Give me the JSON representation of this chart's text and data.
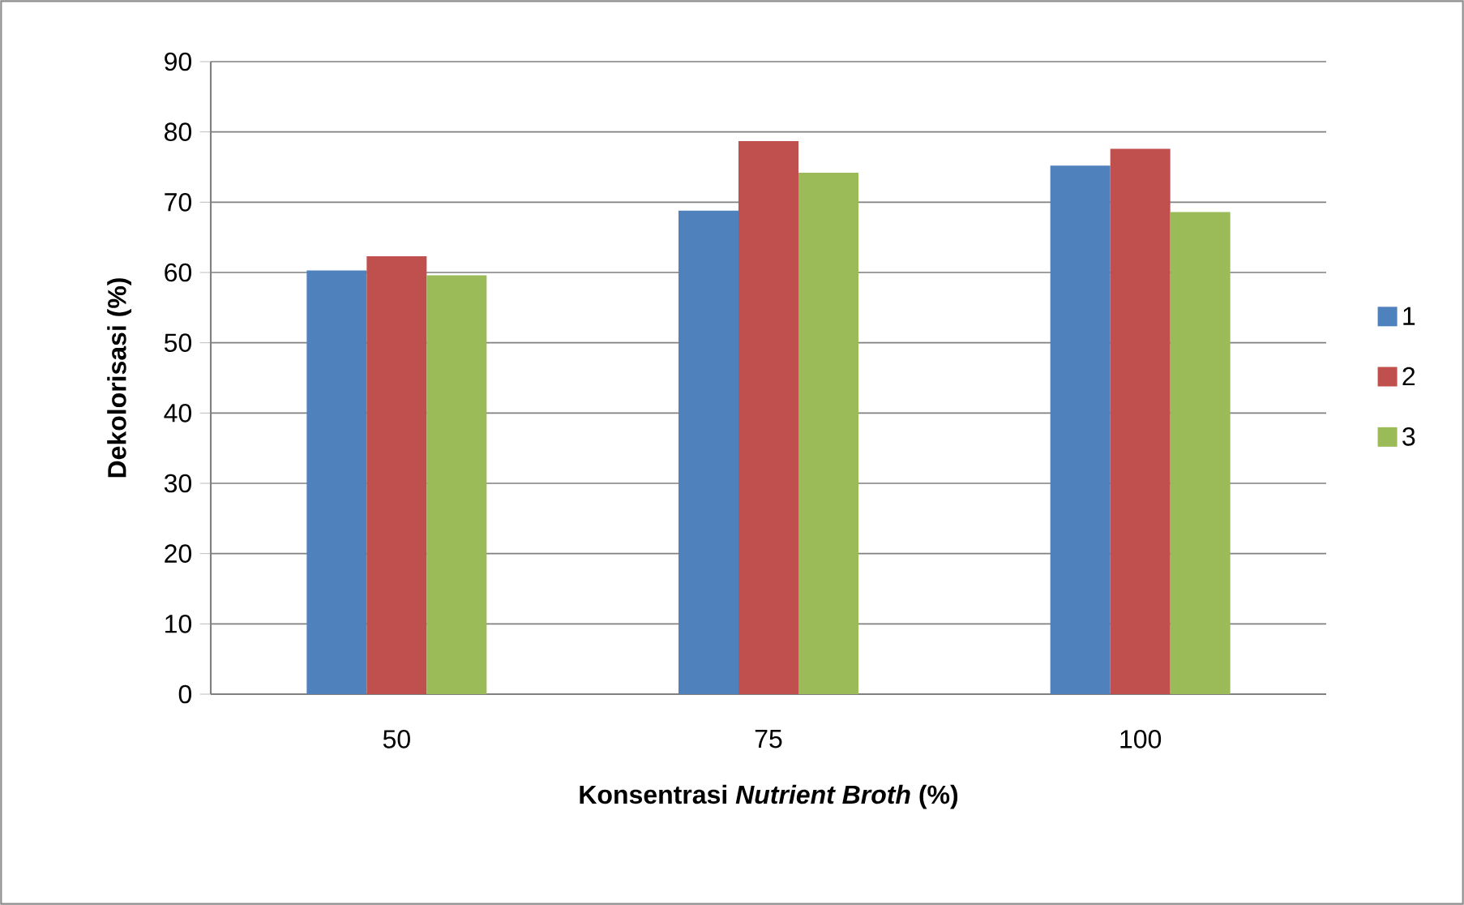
{
  "chart_data": {
    "type": "bar",
    "xlabel": "Konsentrasi *Nutrient Broth* (%)",
    "ylabel": "Dekolorisasi (%)",
    "categories": [
      "50",
      "75",
      "100"
    ],
    "series": [
      {
        "name": "1",
        "color": "#4f81bd",
        "values": [
          60.3,
          68.8,
          75.2
        ]
      },
      {
        "name": "2",
        "color": "#c0504d",
        "values": [
          62.3,
          78.7,
          77.6
        ]
      },
      {
        "name": "3",
        "color": "#9bbb59",
        "values": [
          59.6,
          74.2,
          68.6
        ]
      }
    ],
    "ylim": [
      0,
      90
    ],
    "yticks": [
      0,
      10,
      20,
      30,
      40,
      50,
      60,
      70,
      80,
      90
    ],
    "grid": "y",
    "legend": "right"
  }
}
